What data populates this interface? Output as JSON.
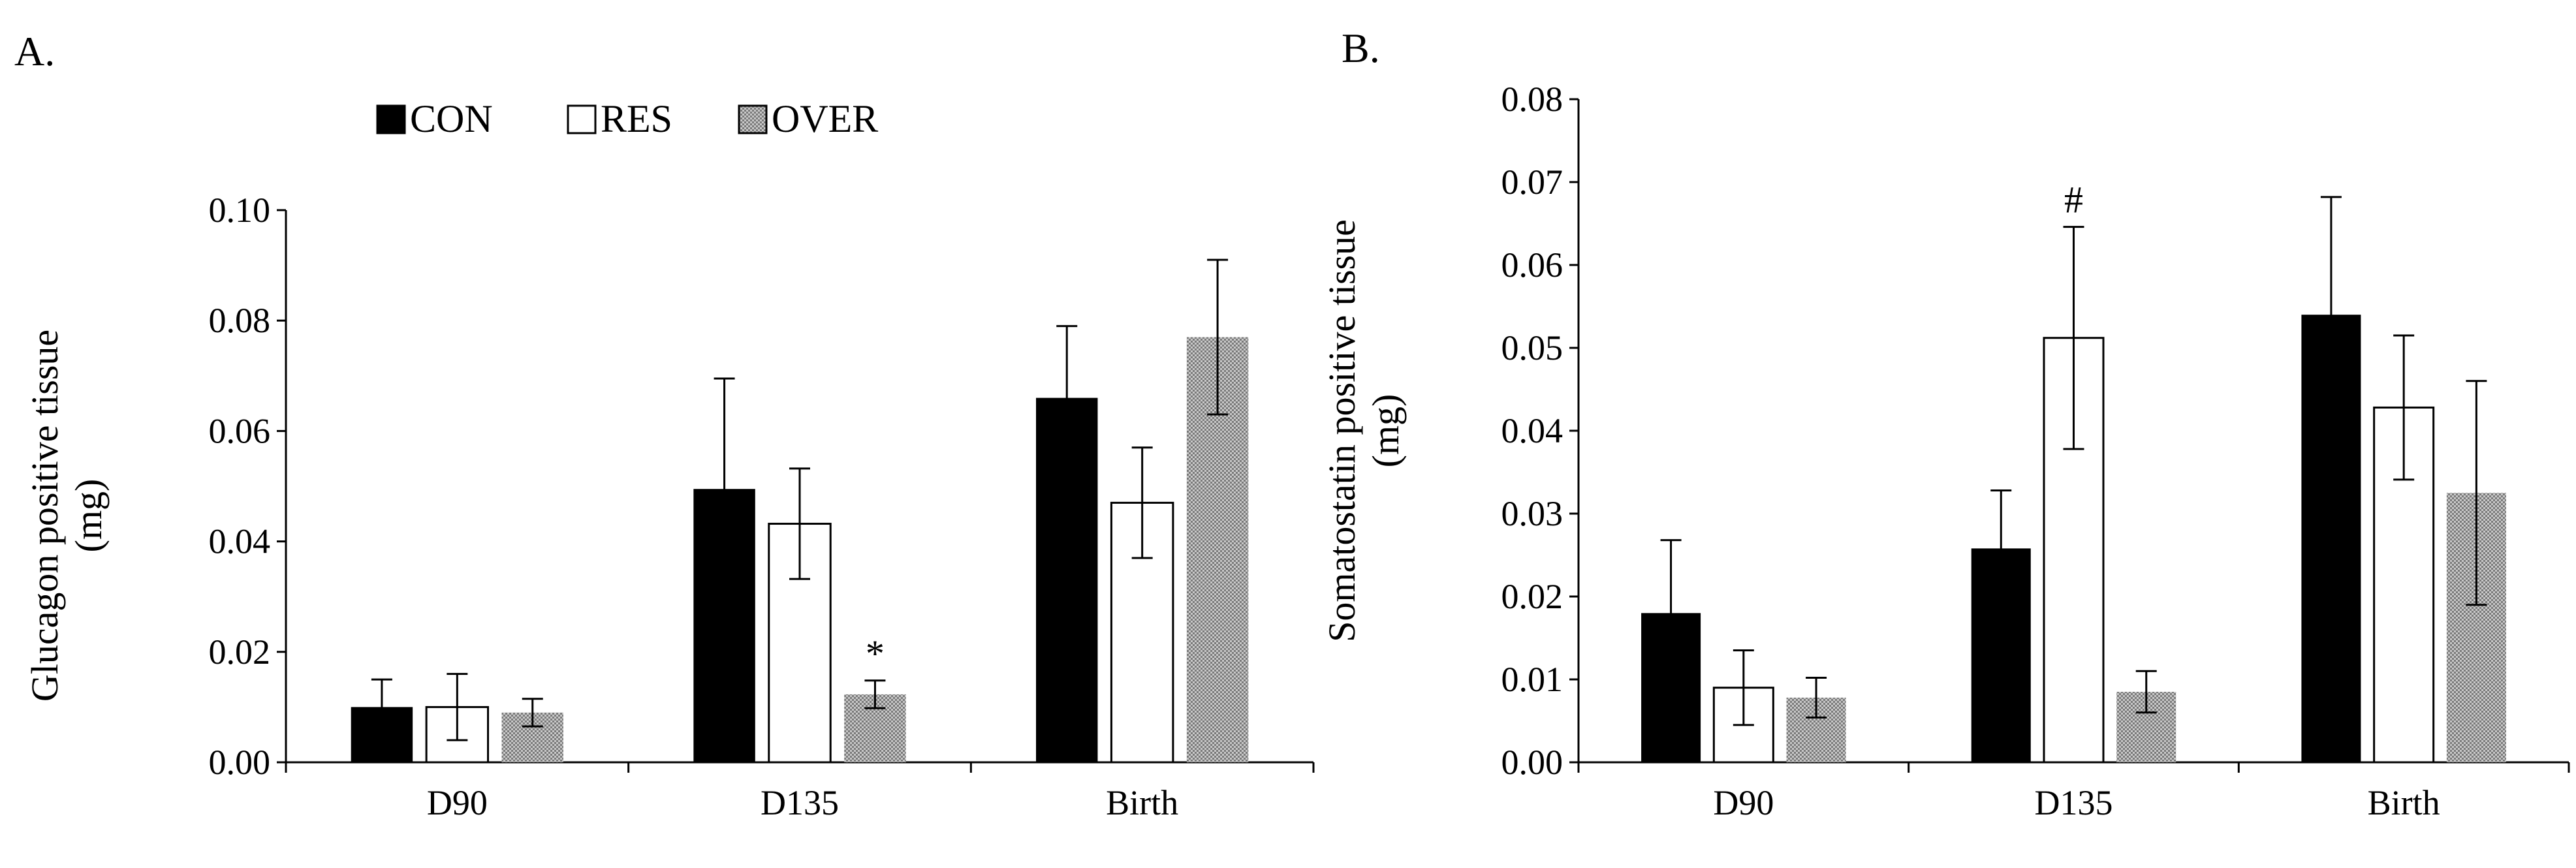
{
  "legend": [
    {
      "name": "CON",
      "color": "#000000",
      "fill_style": "solid"
    },
    {
      "name": "RES",
      "color": "#ffffff",
      "fill_style": "outline"
    },
    {
      "name": "OVER",
      "color": "#b0b0b0",
      "fill_style": "stippled"
    }
  ],
  "chart_data": [
    {
      "panel_label": "A.",
      "type": "bar",
      "ylabel_line1": "Glucagon  positive tissue",
      "ylabel_line2": "(mg)",
      "xlabel": "",
      "categories": [
        "D90",
        "D135",
        "Birth"
      ],
      "ylim": [
        0,
        0.1
      ],
      "yticks": [
        0.0,
        0.02,
        0.04,
        0.06,
        0.08,
        0.1
      ],
      "ytick_labels": [
        "0.00",
        "0.02",
        "0.04",
        "0.06",
        "0.08",
        "0.10"
      ],
      "series": [
        {
          "name": "CON",
          "values": [
            0.01,
            0.0495,
            0.066
          ],
          "errors": [
            0.005,
            0.02,
            0.013
          ]
        },
        {
          "name": "RES",
          "values": [
            0.01,
            0.0432,
            0.047
          ],
          "errors": [
            0.006,
            0.01,
            0.01
          ]
        },
        {
          "name": "OVER",
          "values": [
            0.009,
            0.0123,
            0.077
          ],
          "errors": [
            0.0025,
            0.0025,
            0.014
          ]
        }
      ],
      "annotations": [
        {
          "category": "D135",
          "series": "OVER",
          "text": "*"
        }
      ],
      "grid": false,
      "legend_position": "top"
    },
    {
      "panel_label": "B.",
      "type": "bar",
      "ylabel_line1": "Somatostatin  positive tissue",
      "ylabel_line2": "(mg)",
      "xlabel": "",
      "categories": [
        "D90",
        "D135",
        "Birth"
      ],
      "ylim": [
        0,
        0.08
      ],
      "yticks": [
        0.0,
        0.01,
        0.02,
        0.03,
        0.04,
        0.05,
        0.06,
        0.07,
        0.08
      ],
      "ytick_labels": [
        "0.00",
        "0.01",
        "0.02",
        "0.03",
        "0.04",
        "0.05",
        "0.06",
        "0.07",
        "0.08"
      ],
      "series": [
        {
          "name": "CON",
          "values": [
            0.018,
            0.0258,
            0.054
          ],
          "errors": [
            0.0088,
            0.007,
            0.0142
          ]
        },
        {
          "name": "RES",
          "values": [
            0.009,
            0.0512,
            0.0428
          ],
          "errors": [
            0.0045,
            0.0134,
            0.0087
          ]
        },
        {
          "name": "OVER",
          "values": [
            0.0078,
            0.0085,
            0.0325
          ],
          "errors": [
            0.0024,
            0.0025,
            0.0135
          ]
        }
      ],
      "annotations": [
        {
          "category": "D135",
          "series": "RES",
          "text": "#"
        }
      ],
      "grid": false,
      "legend_position": "none"
    }
  ]
}
